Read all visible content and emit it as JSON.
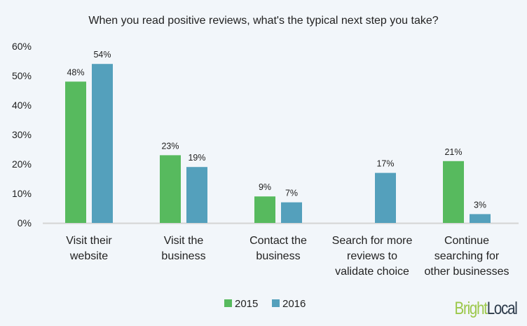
{
  "chart_data": {
    "type": "bar",
    "title": "When you read positive reviews, what's the typical next step you take?",
    "categories": [
      [
        "Visit their",
        "website"
      ],
      [
        "Visit the",
        "business"
      ],
      [
        "Contact the",
        "business"
      ],
      [
        "Search for more",
        "reviews to",
        "validate choice"
      ],
      [
        "Continue",
        "searching for",
        "other businesses"
      ]
    ],
    "series": [
      {
        "name": "2015",
        "color": "#57ba5e",
        "values": [
          48,
          23,
          9,
          null,
          21
        ]
      },
      {
        "name": "2016",
        "color": "#54a0bc",
        "values": [
          54,
          19,
          7,
          17,
          3
        ]
      }
    ],
    "ylim": [
      0,
      60
    ],
    "yticks": [
      "0%",
      "10%",
      "20%",
      "30%",
      "40%",
      "50%",
      "60%"
    ],
    "value_suffix": "%",
    "grid": false,
    "legend_position": "bottom"
  },
  "logo": {
    "part1": "Bright",
    "part2": "Local"
  }
}
